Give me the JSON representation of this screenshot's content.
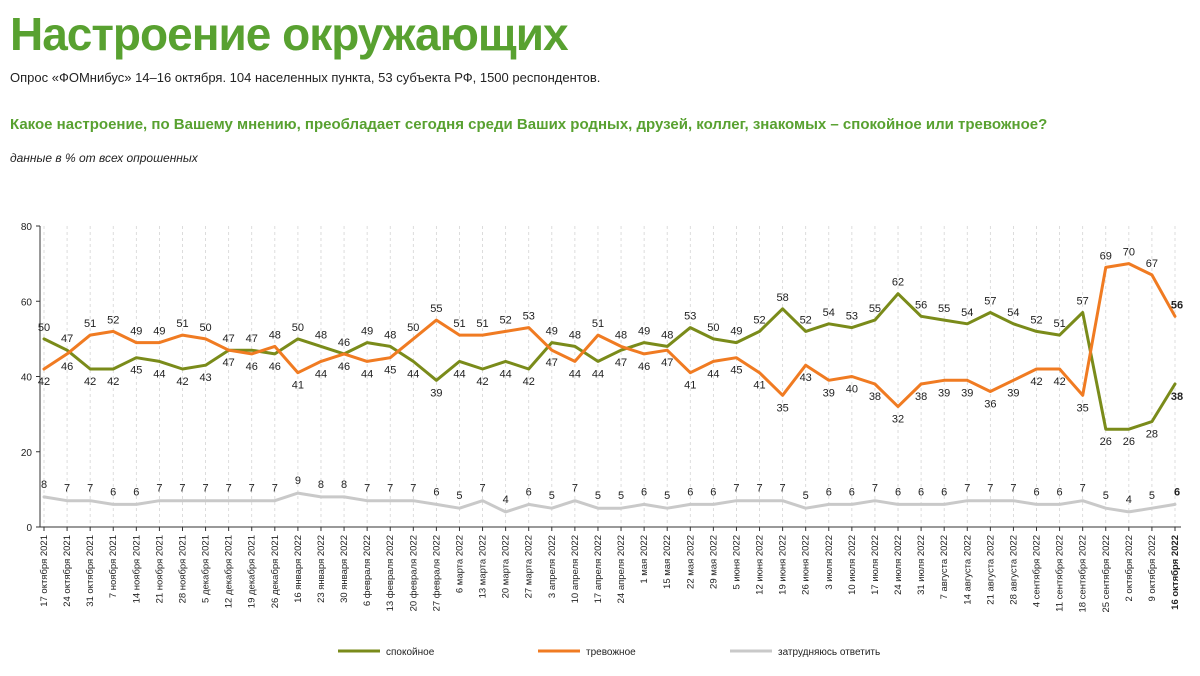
{
  "title": "Настроение окружающих",
  "subtitle": "Опрос «ФОМнибус» 14–16 октября. 104 населенных пункта, 53 субъекта РФ, 1500 респондентов.",
  "question": "Какое настроение, по Вашему мнению, преобладает сегодня среди Ваших родных, друзей, коллег, знакомых – спокойное или тревожное?",
  "note": "данные в % от всех опрошенных",
  "colors": {
    "calm": "#7a8b1a",
    "anxious": "#f07b22",
    "hard": "#c9c9c9",
    "accent": "#58a130"
  },
  "chart_data": {
    "type": "line",
    "ylim": [
      0,
      80
    ],
    "yticks": [
      0,
      20,
      40,
      60,
      80
    ],
    "grid": "vertical dashed",
    "categories": [
      "17 октября 2021",
      "24 октября 2021",
      "31 октября 2021",
      "7 ноября 2021",
      "14 ноября 2021",
      "21 ноября 2021",
      "28 ноября 2021",
      "5 декабря 2021",
      "12 декабря 2021",
      "19 декабря 2021",
      "26 декабря 2021",
      "16 января 2022",
      "23 января 2022",
      "30 января 2022",
      "6 февраля 2022",
      "13 февраля 2022",
      "20 февраля 2022",
      "27 февраля 2022",
      "6 марта 2022",
      "13 марта 2022",
      "20 марта 2022",
      "27 марта 2022",
      "3 апреля 2022",
      "10 апреля 2022",
      "17 апреля 2022",
      "24 апреля 2022",
      "1 мая 2022",
      "15 мая 2022",
      "22 мая 2022",
      "29 мая 2022",
      "5 июня 2022",
      "12 июня 2022",
      "19 июня 2022",
      "26 июня 2022",
      "3 июля 2022",
      "10 июля 2022",
      "17 июля 2022",
      "24 июля 2022",
      "31 июля 2022",
      "7 августа 2022",
      "14 августа 2022",
      "21 августа 2022",
      "28 августа 2022",
      "4 сентября 2022",
      "11 сентября 2022",
      "18 сентября 2022",
      "25 сентября 2022",
      "2 октября 2022",
      "9 октября 2022",
      "16 октября 2022"
    ],
    "series": [
      {
        "name": "спокойное",
        "key": "calm",
        "values": [
          50,
          47,
          42,
          42,
          45,
          44,
          42,
          43,
          47,
          47,
          46,
          50,
          48,
          46,
          49,
          48,
          44,
          39,
          44,
          42,
          44,
          42,
          49,
          48,
          44,
          47,
          49,
          48,
          53,
          50,
          49,
          52,
          58,
          52,
          54,
          53,
          55,
          62,
          56,
          55,
          54,
          57,
          54,
          52,
          51,
          57,
          26,
          26,
          28,
          38
        ]
      },
      {
        "name": "тревожное",
        "key": "anxious",
        "values": [
          42,
          46,
          51,
          52,
          49,
          49,
          51,
          50,
          47,
          46,
          48,
          41,
          44,
          46,
          44,
          45,
          50,
          55,
          51,
          51,
          52,
          53,
          47,
          44,
          51,
          48,
          46,
          47,
          41,
          44,
          45,
          41,
          35,
          43,
          39,
          40,
          38,
          32,
          38,
          39,
          39,
          36,
          39,
          42,
          42,
          35,
          69,
          70,
          67,
          56
        ]
      },
      {
        "name": "затрудняюсь ответить",
        "key": "hard",
        "values": [
          8,
          7,
          7,
          6,
          6,
          7,
          7,
          7,
          7,
          7,
          7,
          9,
          8,
          8,
          7,
          7,
          7,
          6,
          5,
          7,
          4,
          6,
          5,
          7,
          5,
          5,
          6,
          5,
          6,
          6,
          7,
          7,
          7,
          5,
          6,
          6,
          7,
          6,
          6,
          6,
          7,
          7,
          7,
          6,
          6,
          7,
          5,
          4,
          5,
          6
        ]
      }
    ]
  }
}
